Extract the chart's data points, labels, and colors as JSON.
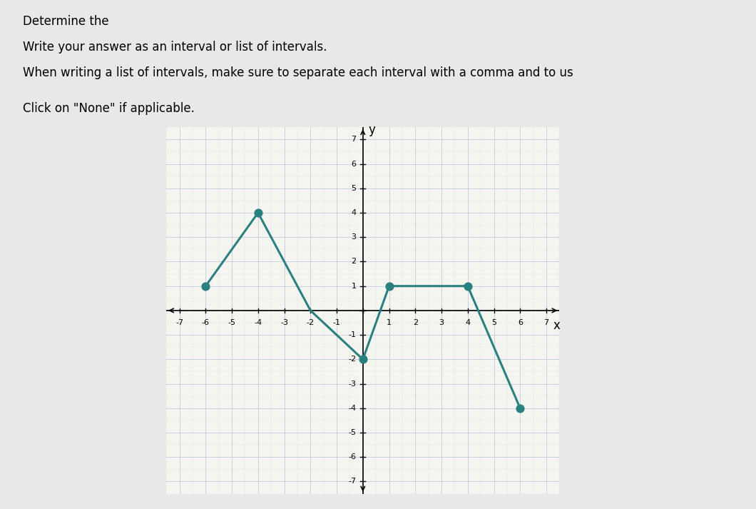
{
  "points": [
    [
      -6,
      1
    ],
    [
      -4,
      4
    ],
    [
      -2,
      0
    ],
    [
      0,
      -2
    ],
    [
      1,
      1
    ],
    [
      4,
      1
    ],
    [
      6,
      -4
    ]
  ],
  "dot_points": [
    [
      -6,
      1
    ],
    [
      -4,
      4
    ],
    [
      0,
      -2
    ],
    [
      1,
      1
    ],
    [
      4,
      1
    ],
    [
      6,
      -4
    ]
  ],
  "line_color": "#2a7f7f",
  "dot_color": "#2a7f7f",
  "dot_size": 60,
  "xlim": [
    -7.5,
    7.5
  ],
  "ylim": [
    -7.5,
    7.5
  ],
  "xticks": [
    -7,
    -6,
    -5,
    -4,
    -3,
    -2,
    -1,
    0,
    1,
    2,
    3,
    4,
    5,
    6,
    7
  ],
  "yticks": [
    -7,
    -6,
    -5,
    -4,
    -3,
    -2,
    -1,
    0,
    1,
    2,
    3,
    4,
    5,
    6,
    7
  ],
  "xlabel": "x",
  "ylabel": "y",
  "grid_color": "#c8d0e0",
  "grid_minor_color": "#dde3ed",
  "bg_color": "#f5f5f0",
  "subtitle1": "Write your answer as an interval or list of intervals.",
  "subtitle2": "When writing a list of intervals, make sure to separate each interval with a comma and to us",
  "subtitle3": "Click on \"None\" if applicable.",
  "fig_bg_color": "#e8e8e8"
}
